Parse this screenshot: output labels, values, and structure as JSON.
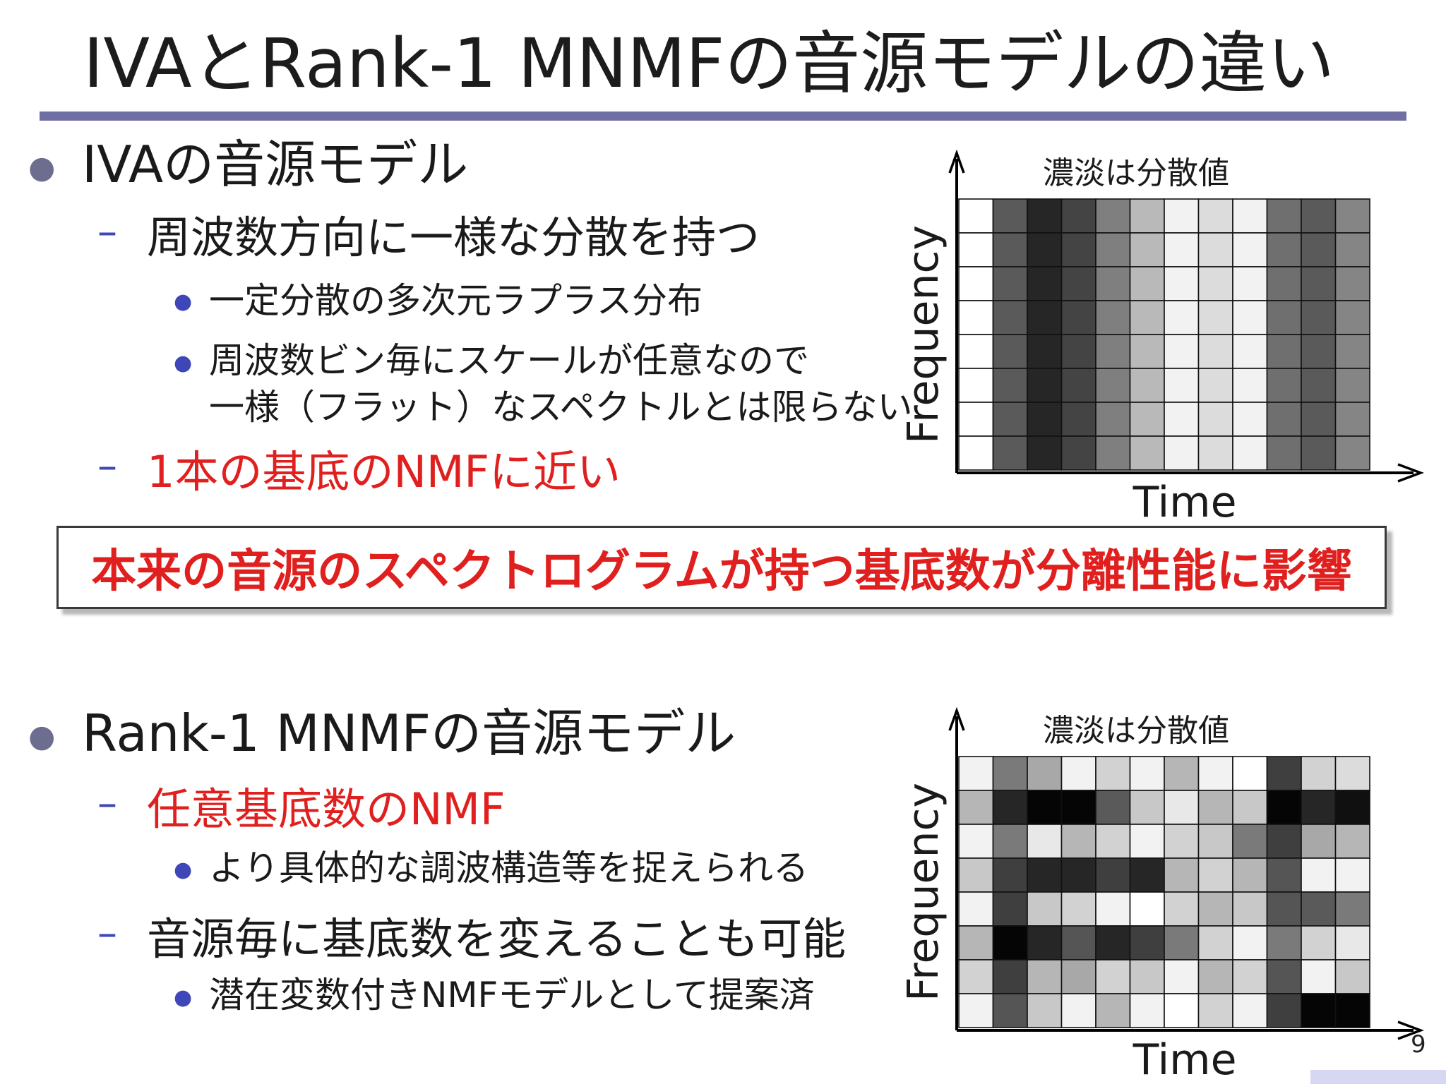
{
  "slide": {
    "title": "IVAとRank-1 MNMFの音源モデルの違い",
    "page_number": "9"
  },
  "iva_section": {
    "heading": "IVAの音源モデル",
    "sub1": "周波数方向に一様な分散を持つ",
    "sub1_items": [
      "一定分散の多次元ラプラス分布",
      "周波数ビン毎にスケールが任意なので",
      "一様（フラット）なスペクトルとは限らない"
    ],
    "sub2": "1本の基底のNMFに近い"
  },
  "callout": {
    "text": "本来の音源のスペクトログラムが持つ基底数が分離性能に影響"
  },
  "mnmf_section": {
    "heading": "Rank-1 MNMFの音源モデル",
    "sub1": "任意基底数のNMF",
    "sub1_items": [
      "より具体的な調波構造等を捉えられる"
    ],
    "sub2": "音源毎に基底数を変えることも可能",
    "sub2_items": [
      "潜在変数付きNMFモデルとして提案済"
    ]
  },
  "grid_top": {
    "caption": "濃淡は分散値",
    "ylabel": "Frequency",
    "xlabel": "Time",
    "cells": [
      [
        "#ffffff",
        "#5a5a5a",
        "#262626",
        "#444444",
        "#7f7f7f",
        "#b9b9b9",
        "#f2f2f2",
        "#dcdcdc",
        "#f2f2f2",
        "#6f6f6f",
        "#5a5a5a",
        "#858585"
      ],
      [
        "#ffffff",
        "#5a5a5a",
        "#262626",
        "#444444",
        "#7f7f7f",
        "#b9b9b9",
        "#f2f2f2",
        "#dcdcdc",
        "#f2f2f2",
        "#6f6f6f",
        "#5a5a5a",
        "#858585"
      ],
      [
        "#ffffff",
        "#5a5a5a",
        "#262626",
        "#444444",
        "#7f7f7f",
        "#b9b9b9",
        "#f2f2f2",
        "#dcdcdc",
        "#f2f2f2",
        "#6f6f6f",
        "#5a5a5a",
        "#858585"
      ],
      [
        "#ffffff",
        "#5a5a5a",
        "#262626",
        "#444444",
        "#7f7f7f",
        "#b9b9b9",
        "#f2f2f2",
        "#dcdcdc",
        "#f2f2f2",
        "#6f6f6f",
        "#5a5a5a",
        "#858585"
      ],
      [
        "#ffffff",
        "#5a5a5a",
        "#262626",
        "#444444",
        "#7f7f7f",
        "#b9b9b9",
        "#f2f2f2",
        "#dcdcdc",
        "#f2f2f2",
        "#6f6f6f",
        "#5a5a5a",
        "#858585"
      ],
      [
        "#ffffff",
        "#5a5a5a",
        "#262626",
        "#444444",
        "#7f7f7f",
        "#b9b9b9",
        "#f2f2f2",
        "#dcdcdc",
        "#f2f2f2",
        "#6f6f6f",
        "#5a5a5a",
        "#858585"
      ],
      [
        "#ffffff",
        "#5a5a5a",
        "#262626",
        "#444444",
        "#7f7f7f",
        "#b9b9b9",
        "#f2f2f2",
        "#dcdcdc",
        "#f2f2f2",
        "#6f6f6f",
        "#5a5a5a",
        "#858585"
      ],
      [
        "#ffffff",
        "#5a5a5a",
        "#262626",
        "#444444",
        "#7f7f7f",
        "#b9b9b9",
        "#f2f2f2",
        "#dcdcdc",
        "#f2f2f2",
        "#6f6f6f",
        "#5a5a5a",
        "#858585"
      ]
    ]
  },
  "grid_bottom": {
    "caption": "濃淡は分散値",
    "ylabel": "Frequency",
    "xlabel": "Time",
    "cells": [
      [
        "#f2f2f2",
        "#7a7a7a",
        "#a8a8a8",
        "#f2f2f2",
        "#d2d2d2",
        "#f2f2f2",
        "#b6b6b6",
        "#f2f2f2",
        "#ffffff",
        "#3f3f3f",
        "#d2d2d2",
        "#dcdcdc"
      ],
      [
        "#b6b6b6",
        "#262626",
        "#050505",
        "#050505",
        "#5a5a5a",
        "#c8c8c8",
        "#e8e8e8",
        "#b6b6b6",
        "#c8c8c8",
        "#050505",
        "#262626",
        "#101010"
      ],
      [
        "#f2f2f2",
        "#7a7a7a",
        "#e8e8e8",
        "#b6b6b6",
        "#d2d2d2",
        "#f2f2f2",
        "#d2d2d2",
        "#c8c8c8",
        "#7a7a7a",
        "#3f3f3f",
        "#a8a8a8",
        "#b6b6b6"
      ],
      [
        "#c8c8c8",
        "#3f3f3f",
        "#262626",
        "#262626",
        "#3f3f3f",
        "#262626",
        "#b6b6b6",
        "#d2d2d2",
        "#b6b6b6",
        "#555555",
        "#f2f2f2",
        "#f2f2f2"
      ],
      [
        "#f2f2f2",
        "#3f3f3f",
        "#c8c8c8",
        "#d2d2d2",
        "#f2f2f2",
        "#ffffff",
        "#d2d2d2",
        "#b6b6b6",
        "#c8c8c8",
        "#555555",
        "#5a5a5a",
        "#7a7a7a"
      ],
      [
        "#b6b6b6",
        "#050505",
        "#262626",
        "#555555",
        "#262626",
        "#3f3f3f",
        "#7a7a7a",
        "#d2d2d2",
        "#f2f2f2",
        "#7a7a7a",
        "#d2d2d2",
        "#e8e8e8"
      ],
      [
        "#d2d2d2",
        "#3f3f3f",
        "#b6b6b6",
        "#a8a8a8",
        "#d2d2d2",
        "#c8c8c8",
        "#f2f2f2",
        "#b6b6b6",
        "#d2d2d2",
        "#555555",
        "#f2f2f2",
        "#c8c8c8"
      ],
      [
        "#f2f2f2",
        "#555555",
        "#c8c8c8",
        "#f2f2f2",
        "#b6b6b6",
        "#f2f2f2",
        "#ffffff",
        "#d2d2d2",
        "#f2f2f2",
        "#3f3f3f",
        "#050505",
        "#050505"
      ]
    ]
  }
}
